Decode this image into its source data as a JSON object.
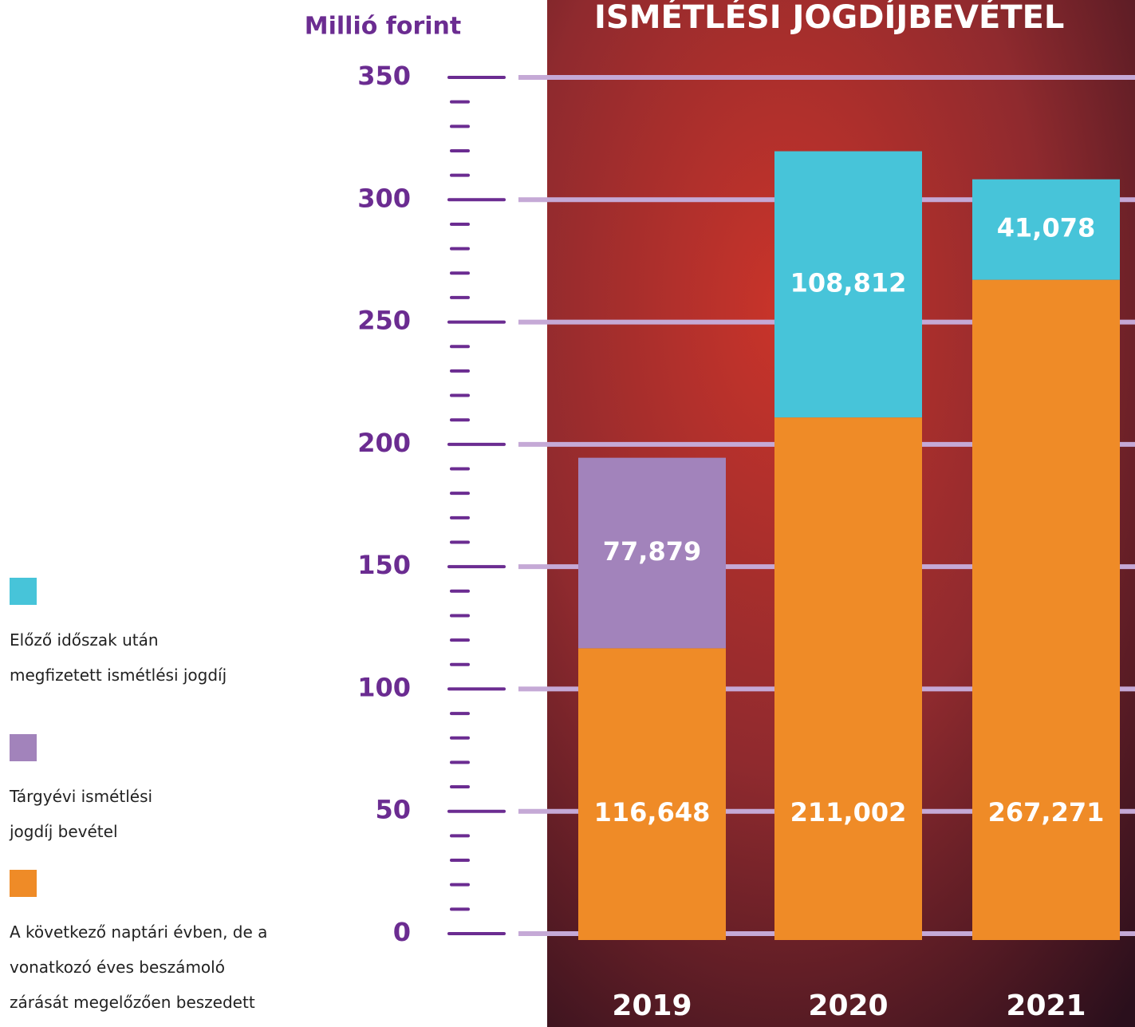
{
  "chart_data": {
    "type": "stacked_bar",
    "title": "ISMÉTLÉSI JOGDÍJBEVÉTEL",
    "y_label": "Millió forint",
    "categories": [
      "2019",
      "2020",
      "2021"
    ],
    "ylim": [
      0,
      350
    ],
    "yticks": [
      0,
      50,
      100,
      150,
      200,
      250,
      300,
      350
    ],
    "grid": true,
    "series": [
      {
        "name": "A következő naptári évben, de a vonatkozó éves beszámoló zárását megelőzően beszedett évi ismétlési jogdíj",
        "color": "#ef8b27",
        "values": [
          116.648,
          211.002,
          267.271
        ],
        "value_labels": [
          "116,648",
          "211,002",
          "267,271"
        ]
      },
      {
        "name": "Tárgyévi ismétlési jogdíj bevétel",
        "color": "#a283bb",
        "values": [
          77.879,
          null,
          null
        ],
        "value_labels": [
          "77,879",
          null,
          null
        ]
      },
      {
        "name": "Előző időszak után megfizetett ismétlési jogdíj",
        "color": "#47c4d9",
        "values": [
          null,
          108.812,
          41.078
        ],
        "value_labels": [
          null,
          "108,812",
          "41,078"
        ]
      }
    ]
  }
}
